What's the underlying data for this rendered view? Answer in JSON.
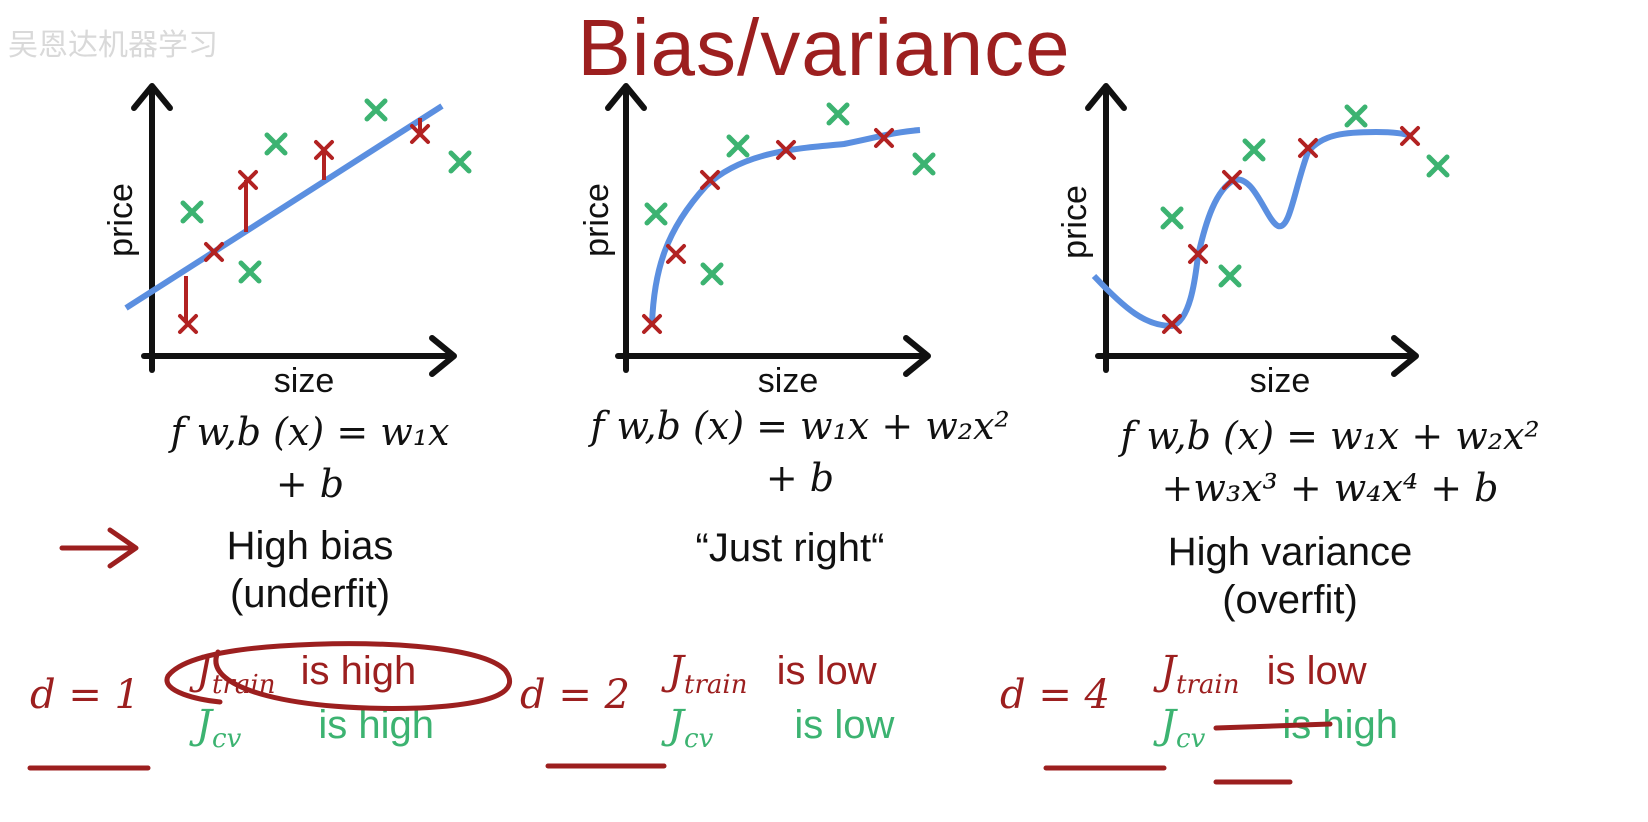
{
  "title": "Bias/variance",
  "watermark": "吴恩达机器学习",
  "colors": {
    "title": "#9c1f1f",
    "train_points": "#b22222",
    "cv_points": "#3cb371",
    "fit_curve": "#5b8fe0",
    "axes": "#111111",
    "annotation": "#9c1f1f"
  },
  "panels": [
    {
      "xlabel": "size",
      "ylabel": "price",
      "formula_line1": "f w,b (x) = w₁x",
      "formula_line2": "+ b",
      "verdict_line1": "High bias",
      "verdict_line2": "(underfit)",
      "degree_label": "d = 1",
      "j_train_symbol": "J",
      "j_train_sub": "train",
      "j_train_text": "is high",
      "j_cv_symbol": "J",
      "j_cv_sub": "cv",
      "j_cv_text": "is high"
    },
    {
      "xlabel": "size",
      "ylabel": "price",
      "formula_line1": "f w,b (x) = w₁x + w₂x²",
      "formula_line2": "+ b",
      "verdict_line1": "“Just right“",
      "verdict_line2": "",
      "degree_label": "d = 2",
      "j_train_symbol": "J",
      "j_train_sub": "train",
      "j_train_text": "is low",
      "j_cv_symbol": "J",
      "j_cv_sub": "cv",
      "j_cv_text": "is low"
    },
    {
      "xlabel": "size",
      "ylabel": "price",
      "formula_line1": "f w,b (x) = w₁x + w₂x²",
      "formula_line2": "+w₃x³ + w₄x⁴ + b",
      "verdict_line1": "High variance",
      "verdict_line2": "(overfit)",
      "degree_label": "d = 4",
      "j_train_symbol": "J",
      "j_train_sub": "train",
      "j_train_text": "is low",
      "j_cv_symbol": "J",
      "j_cv_sub": "cv",
      "j_cv_text": "is high"
    }
  ]
}
